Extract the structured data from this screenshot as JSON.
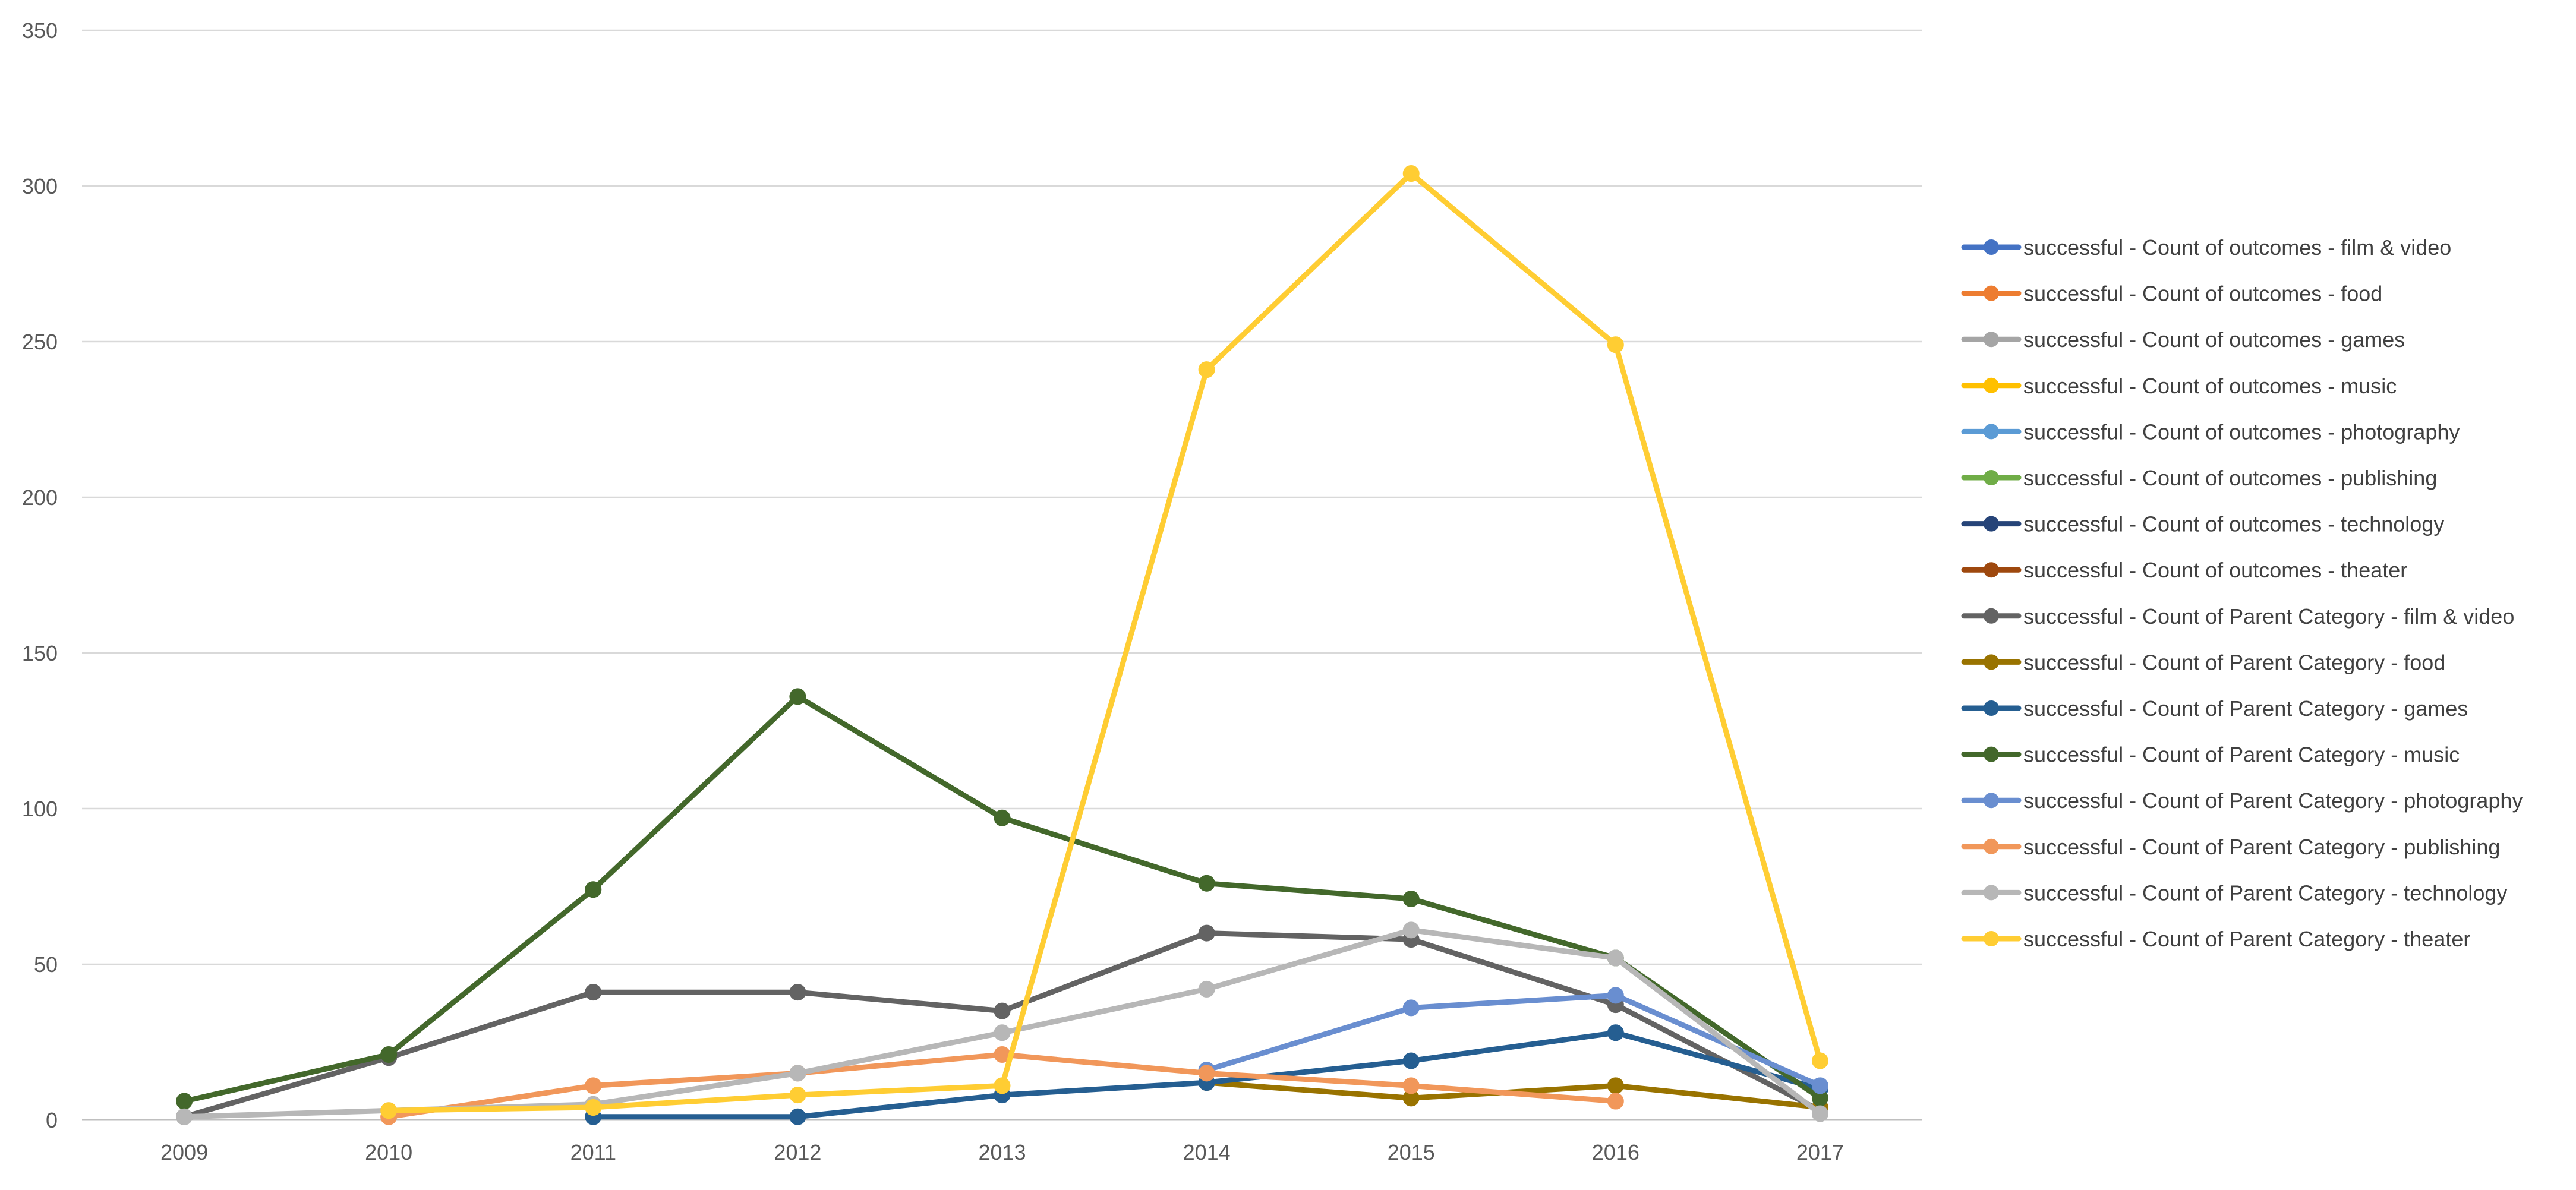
{
  "chart_data": {
    "type": "line",
    "title": "",
    "xlabel": "",
    "ylabel": "",
    "x": [
      "2009",
      "2010",
      "2011",
      "2012",
      "2013",
      "2014",
      "2015",
      "2016",
      "2017"
    ],
    "ylim": [
      0,
      350
    ],
    "yticks": [
      0,
      50,
      100,
      150,
      200,
      250,
      300,
      350
    ],
    "grid": true,
    "legend_position": "right",
    "series": [
      {
        "name": "successful - Count of outcomes - film & video",
        "color": "#4472C4",
        "values": [
          null,
          null,
          null,
          null,
          null,
          null,
          null,
          null,
          null
        ]
      },
      {
        "name": "successful - Count of outcomes - food",
        "color": "#ED7D31",
        "values": [
          null,
          null,
          null,
          null,
          null,
          null,
          null,
          null,
          null
        ]
      },
      {
        "name": "successful - Count of outcomes - games",
        "color": "#A5A5A5",
        "values": [
          null,
          null,
          null,
          null,
          null,
          null,
          null,
          null,
          null
        ]
      },
      {
        "name": "successful - Count of outcomes - music",
        "color": "#FFC000",
        "values": [
          null,
          null,
          null,
          null,
          null,
          null,
          null,
          null,
          null
        ]
      },
      {
        "name": "successful - Count of outcomes - photography",
        "color": "#5B9BD5",
        "values": [
          null,
          null,
          null,
          null,
          null,
          null,
          null,
          null,
          null
        ]
      },
      {
        "name": "successful - Count of outcomes - publishing",
        "color": "#70AD47",
        "values": [
          null,
          null,
          null,
          null,
          null,
          null,
          null,
          null,
          null
        ]
      },
      {
        "name": "successful - Count of outcomes - technology",
        "color": "#264478",
        "values": [
          null,
          null,
          null,
          null,
          null,
          null,
          null,
          null,
          null
        ]
      },
      {
        "name": "successful - Count of outcomes - theater",
        "color": "#9E480E",
        "values": [
          null,
          null,
          null,
          null,
          null,
          null,
          null,
          null,
          null
        ]
      },
      {
        "name": "successful - Count of Parent Category - film & video",
        "color": "#636363",
        "values": [
          1,
          20,
          41,
          41,
          35,
          60,
          58,
          37,
          3
        ]
      },
      {
        "name": "successful - Count of Parent Category - food",
        "color": "#997300",
        "values": [
          null,
          null,
          null,
          null,
          null,
          12,
          7,
          11,
          4
        ]
      },
      {
        "name": "successful - Count of Parent Category - games",
        "color": "#255E91",
        "values": [
          null,
          null,
          1,
          1,
          8,
          12,
          19,
          28,
          10
        ]
      },
      {
        "name": "successful - Count of Parent Category - music",
        "color": "#43682B",
        "values": [
          6,
          21,
          74,
          136,
          97,
          76,
          71,
          52,
          7
        ]
      },
      {
        "name": "successful - Count of Parent Category - photography",
        "color": "#698ED0",
        "values": [
          null,
          null,
          null,
          null,
          null,
          16,
          36,
          40,
          11
        ]
      },
      {
        "name": "successful - Count of Parent Category - publishing",
        "color": "#F1975A",
        "values": [
          null,
          1,
          11,
          15,
          21,
          15,
          11,
          6,
          null
        ]
      },
      {
        "name": "successful - Count of Parent Category - technology",
        "color": "#B7B7B7",
        "values": [
          1,
          3,
          5,
          15,
          28,
          42,
          61,
          52,
          2
        ]
      },
      {
        "name": "successful - Count of Parent Category - theater",
        "color": "#FFCD33",
        "values": [
          null,
          3,
          4,
          8,
          11,
          241,
          304,
          249,
          19
        ]
      }
    ]
  }
}
